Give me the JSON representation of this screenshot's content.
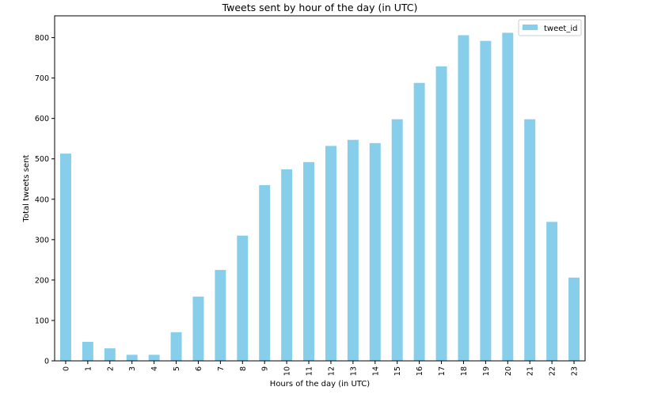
{
  "chart_data": {
    "type": "bar",
    "title": "Tweets sent by hour of the day (in UTC)",
    "xlabel": "Hours of the day (in UTC)",
    "ylabel": "Total tweets sent",
    "categories": [
      "0",
      "1",
      "2",
      "3",
      "4",
      "5",
      "6",
      "7",
      "8",
      "9",
      "10",
      "11",
      "12",
      "13",
      "14",
      "15",
      "16",
      "17",
      "18",
      "19",
      "20",
      "21",
      "22",
      "23"
    ],
    "series": [
      {
        "name": "tweet_id",
        "values": [
          513,
          47,
          31,
          15,
          15,
          71,
          159,
          225,
          310,
          435,
          474,
          492,
          532,
          547,
          539,
          598,
          688,
          729,
          806,
          792,
          812,
          598,
          344,
          206
        ]
      }
    ],
    "ylim": [
      0,
      854
    ],
    "yticks": [
      0,
      100,
      200,
      300,
      400,
      500,
      600,
      700,
      800
    ],
    "bar_color": "#87ceeb",
    "legend_placement": "top-right",
    "grid": false
  }
}
